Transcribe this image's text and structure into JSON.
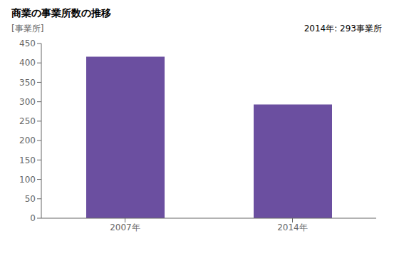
{
  "chart_data": {
    "type": "bar",
    "title": "商業の事業所数の推移",
    "ylabel": "[事業所]",
    "categories": [
      "2007年",
      "2014年"
    ],
    "values": [
      416,
      293
    ],
    "color": "#6B4FA0",
    "annotation": "2014年: 293事業所",
    "ylim": [
      0,
      450
    ],
    "yticks": [
      0,
      50,
      100,
      150,
      200,
      250,
      300,
      350,
      400,
      450
    ],
    "grid": false
  }
}
